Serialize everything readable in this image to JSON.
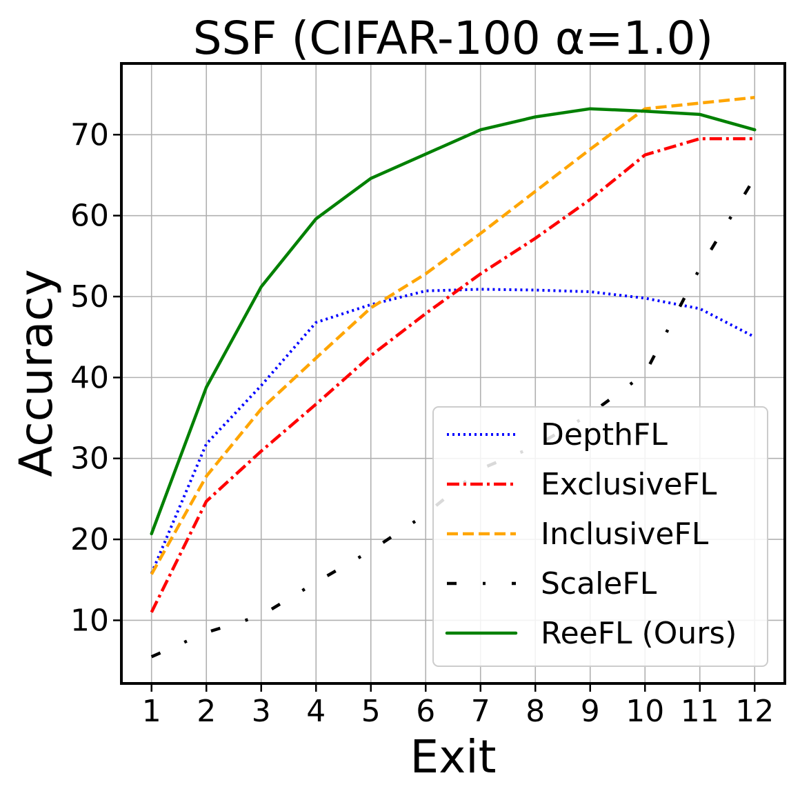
{
  "chart_data": {
    "type": "line",
    "title": "SSF (CIFAR-100 α=1.0)",
    "xlabel": "Exit",
    "ylabel": "Accuracy",
    "x": [
      1,
      2,
      3,
      4,
      5,
      6,
      7,
      8,
      9,
      10,
      11,
      12
    ],
    "x_tick_labels": [
      "1",
      "2",
      "3",
      "4",
      "5",
      "6",
      "7",
      "8",
      "9",
      "10",
      "11",
      "12"
    ],
    "xlim": [
      0.45,
      12.55
    ],
    "ylim": [
      2.2,
      78.8
    ],
    "y_ticks": [
      10,
      20,
      30,
      40,
      50,
      60,
      70
    ],
    "y_tick_labels": [
      "10",
      "20",
      "30",
      "40",
      "50",
      "60",
      "70"
    ],
    "grid": true,
    "legend_position": "lower right",
    "series": [
      {
        "name": "DepthFL",
        "color": "#0000ff",
        "style": "dotted",
        "values": [
          15.8,
          31.8,
          39.0,
          46.8,
          49.0,
          50.7,
          50.9,
          50.8,
          50.6,
          49.8,
          48.5,
          45.0
        ]
      },
      {
        "name": "ExclusiveFL",
        "color": "#ff0000",
        "style": "dashdot",
        "values": [
          11.0,
          24.7,
          30.9,
          36.7,
          42.7,
          47.9,
          52.8,
          57.2,
          62.0,
          67.5,
          69.5,
          69.5
        ]
      },
      {
        "name": "InclusiveFL",
        "color": "#ffa500",
        "style": "dashed",
        "values": [
          15.7,
          27.8,
          36.1,
          42.4,
          48.6,
          52.8,
          57.8,
          63.0,
          68.2,
          73.2,
          73.9,
          74.6
        ]
      },
      {
        "name": "ScaleFL",
        "color": "#000000",
        "style": "loosely-dashdot",
        "values": [
          5.5,
          8.5,
          10.6,
          14.7,
          18.6,
          23.1,
          28.7,
          31.5,
          35.5,
          40.5,
          53.5,
          64.7
        ]
      },
      {
        "name": "ReeFL (Ours)",
        "color": "#008000",
        "style": "solid",
        "values": [
          20.7,
          38.8,
          51.2,
          59.6,
          64.6,
          67.6,
          70.6,
          72.2,
          73.2,
          72.9,
          72.5,
          70.6
        ]
      }
    ]
  }
}
